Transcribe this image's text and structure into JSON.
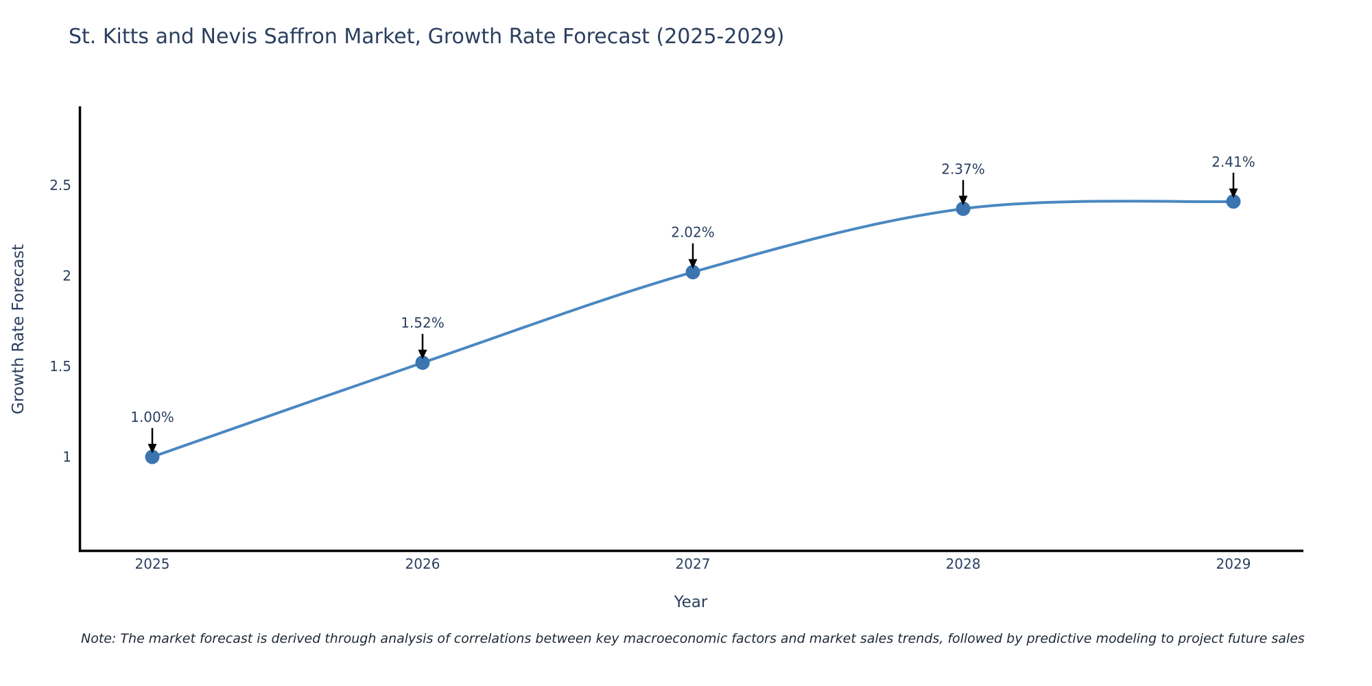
{
  "title": "St. Kitts and Nevis Saffron Market, Growth Rate Forecast (2025-2029)",
  "note": "Note: The market forecast is derived through analysis of correlations between key macroeconomic factors and market sales trends, followed by predictive modeling to project future sales",
  "chart_data": {
    "type": "line",
    "title": "St. Kitts and Nevis Saffron Market, Growth Rate Forecast (2025-2029)",
    "xlabel": "Year",
    "ylabel": "Growth Rate Forecast",
    "x": [
      "2025",
      "2026",
      "2027",
      "2028",
      "2029"
    ],
    "series": [
      {
        "name": "Growth Rate Forecast",
        "values": [
          1.0,
          1.52,
          2.02,
          2.37,
          2.41
        ]
      }
    ],
    "point_labels": [
      "1.00%",
      "1.52%",
      "2.02%",
      "2.37%",
      "2.41%"
    ],
    "yticks": [
      1,
      1.5,
      2,
      2.5
    ],
    "ytick_labels": [
      "1",
      "1.5",
      "2",
      "2.5"
    ],
    "ylim": [
      0.45,
      2.95
    ],
    "grid": false,
    "legend_position": "none",
    "line_shape": "spline",
    "colors": {
      "line": "#4a87c1",
      "marker": "#3a75b0",
      "axis": "#000000",
      "text": "#2a3f5f",
      "annotation_arrow": "#000000",
      "background": "#ffffff"
    }
  }
}
